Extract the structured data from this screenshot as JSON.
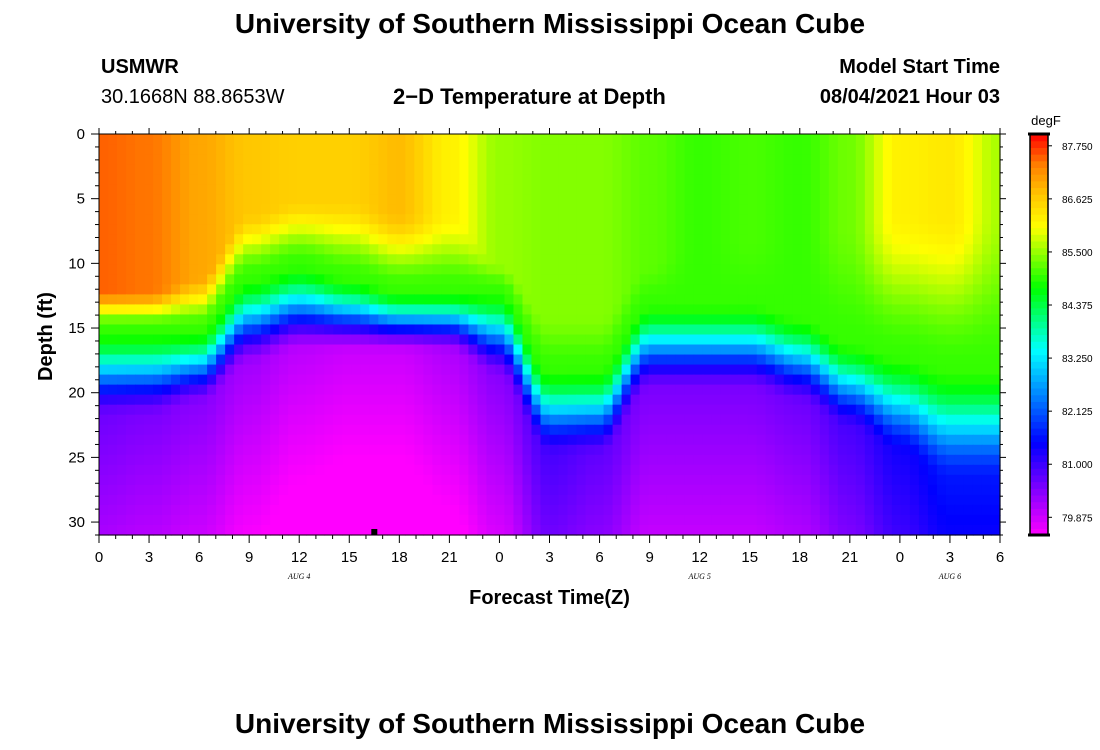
{
  "page": {
    "title_top": "University of Southern Mississippi Ocean Cube",
    "title_bottom": "University of Southern Mississippi Ocean Cube",
    "station": "USMWR",
    "location": "30.1668N  88.8653W",
    "plot_title": "2−D Temperature at Depth",
    "model_label": "Model Start Time",
    "model_time": "08/04/2021 Hour 03"
  },
  "chart_data": {
    "type": "heatmap",
    "title": "2-D Temperature at Depth",
    "xlabel": "Forecast Time(Z)",
    "ylabel": "Depth (ft)",
    "xlim": [
      0,
      54
    ],
    "ylim": [
      31,
      0
    ],
    "x_ticks": [
      0,
      3,
      6,
      9,
      12,
      15,
      18,
      21,
      24,
      27,
      30,
      33,
      36,
      39,
      42,
      45,
      48,
      51,
      54
    ],
    "x_tick_labels": [
      "0",
      "3",
      "6",
      "9",
      "12",
      "15",
      "18",
      "21",
      "0",
      "3",
      "6",
      "9",
      "12",
      "15",
      "18",
      "21",
      "0",
      "3",
      "6"
    ],
    "y_ticks": [
      0,
      5,
      10,
      15,
      20,
      25,
      30
    ],
    "y_tick_labels": [
      "0",
      "5",
      "10",
      "15",
      "20",
      "25",
      "30"
    ],
    "day_labels": [
      {
        "x": 12,
        "text": "AUG 4"
      },
      {
        "x": 36,
        "text": "AUG 5"
      },
      {
        "x": 51,
        "text": "AUG 6"
      }
    ],
    "colorbar": {
      "unit": "degF",
      "min": 79.5,
      "max": 88.0,
      "ticks": [
        87.75,
        86.625,
        85.5,
        84.375,
        83.25,
        82.125,
        81.0,
        79.875
      ],
      "tick_labels": [
        "87.750",
        "86.625",
        "85.500",
        "84.375",
        "83.250",
        "82.125",
        "81.000",
        "79.875"
      ],
      "colors": [
        "#ff00ff",
        "#aa00ff",
        "#5500ff",
        "#0000ff",
        "#0055ff",
        "#00aaff",
        "#00ffff",
        "#00ff80",
        "#00ff00",
        "#80ff00",
        "#ffff00",
        "#ffc800",
        "#ff8000",
        "#ff0000"
      ]
    },
    "temp_profile_points": {
      "x": [
        0,
        3,
        6,
        9,
        12,
        15,
        18,
        21,
        24,
        27,
        30,
        33,
        36,
        39,
        42,
        45,
        48,
        51,
        54
      ],
      "surface_temp": [
        87.5,
        87.4,
        87.0,
        86.7,
        86.6,
        86.6,
        86.8,
        86.2,
        85.5,
        85.4,
        85.4,
        85.2,
        85.0,
        85.1,
        85.0,
        85.3,
        86.2,
        86.3,
        85.6
      ],
      "warm_layer_depth_ft": [
        12,
        12,
        11,
        6,
        5,
        5,
        6,
        6,
        10,
        14,
        14,
        10,
        8,
        8,
        7,
        7,
        6,
        6,
        6
      ],
      "thermocline_top_ft": [
        15,
        15,
        15,
        11,
        10,
        11,
        12,
        12,
        12,
        18,
        18,
        13,
        13,
        13,
        14,
        16,
        17,
        18,
        18
      ],
      "thermocline_bottom_ft": [
        22,
        22,
        21,
        18,
        17,
        17,
        17,
        17,
        19,
        25,
        25,
        20,
        20,
        20,
        21,
        23,
        25,
        27,
        27
      ],
      "bottom_temp": [
        80.6,
        80.5,
        80.4,
        80.2,
        80.0,
        79.9,
        79.9,
        80.1,
        80.4,
        80.9,
        80.7,
        80.5,
        80.5,
        80.5,
        80.6,
        80.9,
        81.3,
        81.6,
        81.6
      ]
    },
    "marker": {
      "x": 16.5,
      "y": 31
    }
  }
}
